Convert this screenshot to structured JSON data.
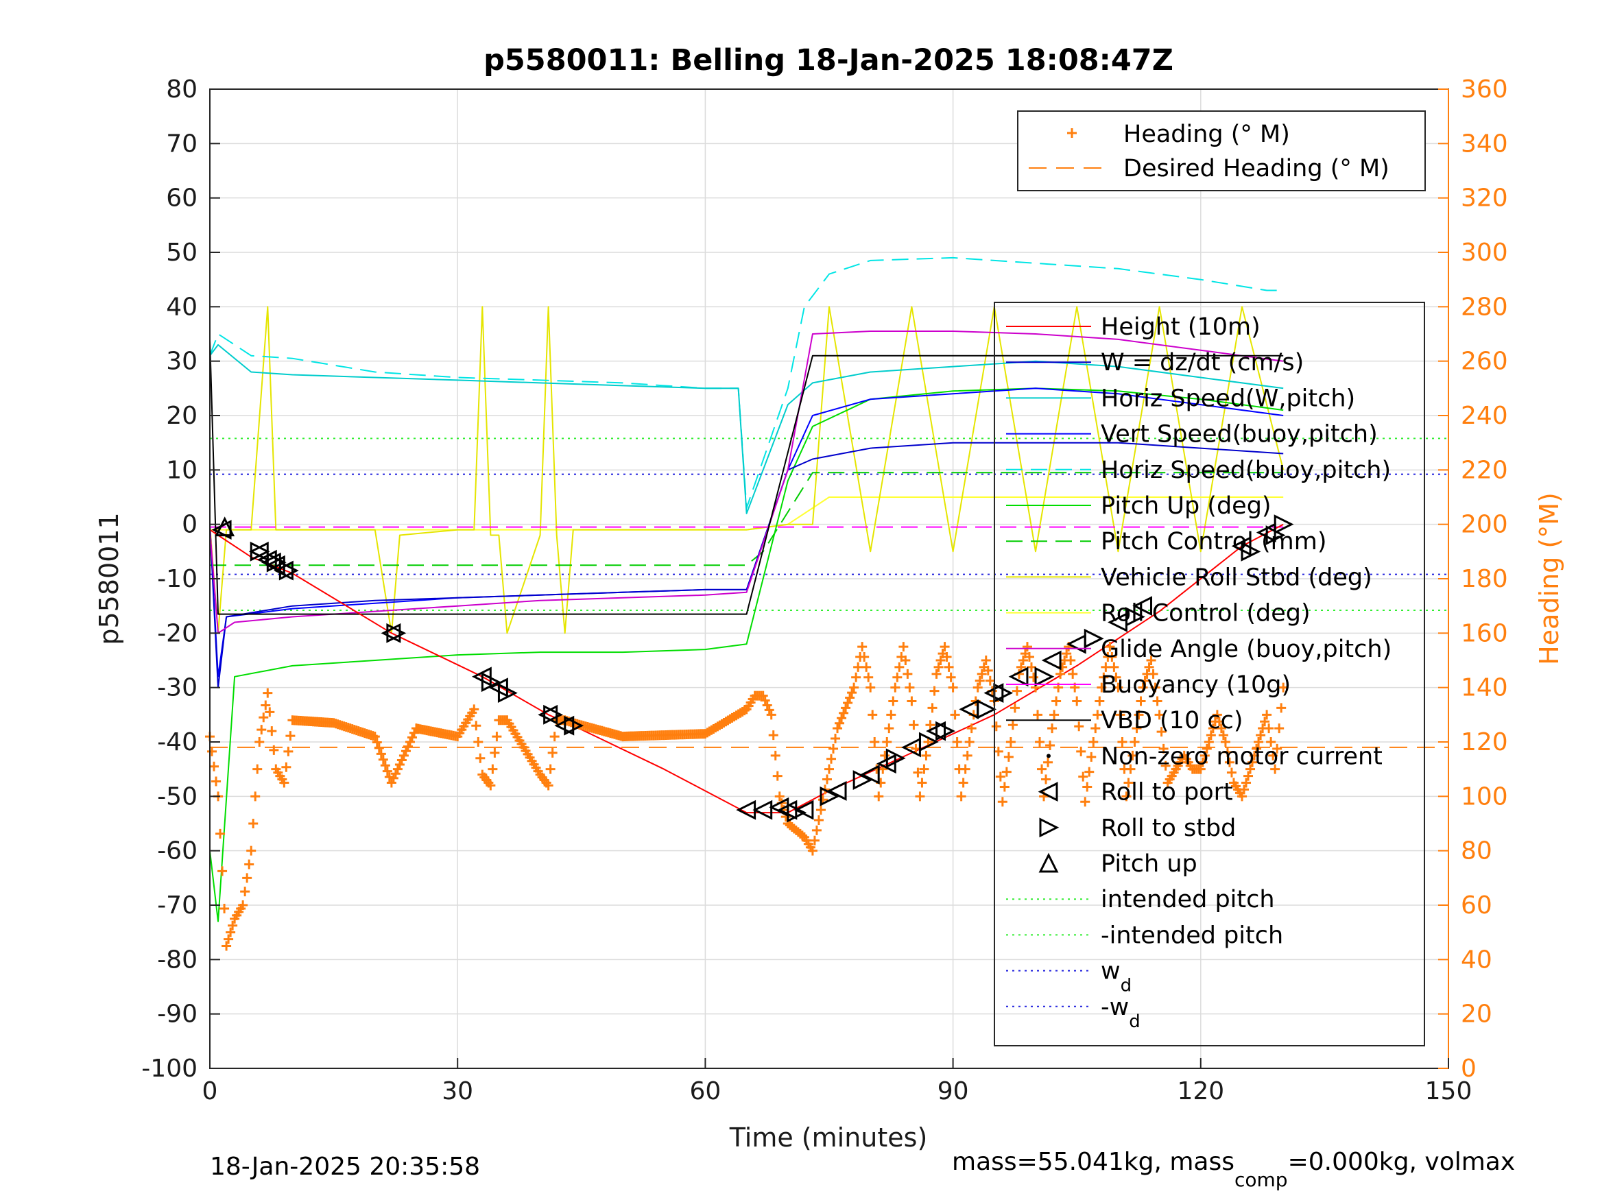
{
  "chart_data": {
    "type": "line",
    "title": "p5580011: Belling 18-Jan-2025 18:08:47Z",
    "xlabel": "Time (minutes)",
    "ylabel": "p5580011",
    "ylabel_right": "Heading (°M)",
    "xlim": [
      0,
      150
    ],
    "ylim": [
      -100,
      80
    ],
    "ylim_right": [
      0,
      360
    ],
    "xticks": [
      "0",
      "30",
      "60",
      "90",
      "120",
      "150"
    ],
    "yticks": [
      "80",
      "70",
      "60",
      "50",
      "40",
      "30",
      "20",
      "10",
      "0",
      "-10",
      "-20",
      "-30",
      "-40",
      "-50",
      "-60",
      "-70",
      "-80",
      "-90",
      "-100"
    ],
    "yticks_right": [
      "360",
      "340",
      "320",
      "300",
      "280",
      "260",
      "240",
      "220",
      "200",
      "180",
      "160",
      "140",
      "120",
      "100",
      "80",
      "60",
      "40",
      "20",
      "0"
    ],
    "grid": true,
    "legend_heading": [
      "Heading (° M)",
      "Desired Heading (° M)"
    ],
    "legend_main": [
      "Height (10m)",
      "W = dz/dt (cm/s)",
      "Horiz Speed(W,pitch)",
      "Vert Speed(buoy,pitch)",
      "Horiz Speed(buoy,pitch)",
      "Pitch Up (deg)",
      "Pitch Control (mm)",
      "Vehicle Roll Stbd (deg)",
      "Roll Control (deg)",
      "Glide Angle (buoy,pitch)",
      "Buoyancy (10g)",
      "VBD (10 cc)",
      "Non-zero motor current",
      "Roll to port",
      "Roll to stbd",
      "Pitch up",
      "intended pitch",
      "-intended pitch",
      "w",
      "-w"
    ],
    "legend_sub": "d",
    "colors": {
      "heading": "#ff7f0e",
      "height": "#ff0000",
      "w": "#0000cc",
      "horiz_w": "#00cccc",
      "vert_buoy": "#0000ff",
      "horiz_buoy": "#00e5e5",
      "pitch": "#00dd00",
      "pitch_ctrl": "#00cc00",
      "roll": "#e5e500",
      "roll_ctrl": "#ffff33",
      "glide": "#cc00cc",
      "buoyancy": "#ff00ff",
      "vbd": "#000000"
    },
    "constants": {
      "intended_pitch": 15.8,
      "w_d": 9.2
    },
    "desired_heading": 118,
    "series": [
      {
        "name": "Height (10m)",
        "x": [
          0,
          1,
          5,
          10,
          22,
          33,
          41,
          44,
          55,
          65,
          70,
          75,
          85,
          95,
          105,
          115,
          125,
          130
        ],
        "y": [
          -1,
          -2,
          -6,
          -9,
          -20,
          -28,
          -35,
          -37,
          -45,
          -53,
          -53,
          -49,
          -42,
          -35,
          -26,
          -16,
          -4,
          0
        ]
      },
      {
        "name": "W = dz/dt (cm/s)",
        "x": [
          0,
          1,
          2,
          10,
          20,
          30,
          40,
          50,
          60,
          65,
          70,
          73,
          80,
          90,
          100,
          110,
          120,
          130
        ],
        "y": [
          0,
          -30,
          -17,
          -15,
          -14,
          -13.5,
          -13,
          -12.5,
          -12,
          -12,
          10,
          12,
          14,
          15,
          15,
          15,
          14,
          13
        ]
      },
      {
        "name": "Vert Speed(buoy,pitch)",
        "x": [
          0,
          1,
          2,
          10,
          20,
          30,
          40,
          50,
          60,
          65,
          70,
          73,
          80,
          90,
          100,
          110,
          120,
          130
        ],
        "y": [
          0,
          -28,
          -17,
          -15.5,
          -14.5,
          -13.5,
          -13,
          -12.5,
          -12,
          -12,
          10,
          20,
          23,
          24,
          25,
          24,
          22,
          20
        ]
      },
      {
        "name": "Horiz Speed(W,pitch)",
        "x": [
          0,
          1,
          5,
          10,
          20,
          30,
          40,
          50,
          60,
          64,
          65,
          70,
          73,
          80,
          90,
          100,
          110,
          120,
          130
        ],
        "y": [
          31,
          33,
          28,
          27.5,
          27,
          26.5,
          26,
          25.5,
          25,
          25,
          2,
          22,
          26,
          28,
          29,
          30,
          29,
          27,
          25
        ]
      },
      {
        "name": "Horiz Speed(buoy,pitch)",
        "x": [
          0,
          1,
          5,
          10,
          20,
          30,
          40,
          50,
          60,
          64,
          65,
          70,
          72,
          75,
          80,
          90,
          100,
          110,
          120,
          128,
          130
        ],
        "y": [
          31,
          35,
          31,
          30.5,
          28,
          27,
          26.5,
          26,
          25,
          25,
          3,
          25,
          40,
          46,
          48.5,
          49,
          48,
          47,
          45,
          43,
          43
        ]
      },
      {
        "name": "Pitch Up (deg)",
        "x": [
          0,
          1,
          3,
          10,
          20,
          30,
          40,
          50,
          60,
          65,
          70,
          73,
          80,
          90,
          100,
          110,
          120,
          130
        ],
        "y": [
          -60,
          -73,
          -28,
          -26,
          -25,
          -24,
          -23.5,
          -23.5,
          -23,
          -22,
          8,
          18,
          23,
          24.5,
          25,
          24.5,
          23,
          21
        ]
      },
      {
        "name": "Pitch Control (mm)",
        "x": [
          0,
          2,
          65,
          67,
          73,
          130
        ],
        "y": [
          -7.5,
          -7.5,
          -7.5,
          -5,
          9.5,
          9.5
        ]
      },
      {
        "name": "Vehicle Roll Stbd (deg)",
        "x": [
          0,
          1,
          2,
          5,
          7,
          8,
          9,
          10,
          20,
          22,
          23,
          30,
          32,
          33,
          34,
          35,
          36,
          40,
          41,
          42,
          43,
          44,
          50,
          60,
          65,
          70,
          73,
          75,
          80,
          85,
          90,
          95,
          100,
          105,
          110,
          115,
          120,
          125,
          130
        ],
        "y": [
          0,
          -20,
          -1,
          -1,
          40,
          -1,
          -1,
          -1,
          -1,
          -20,
          -2,
          -1,
          -1,
          40,
          -2,
          -2,
          -20,
          -2,
          40,
          -2,
          -20,
          -1,
          -1,
          -1,
          -1,
          0,
          0,
          40,
          -5,
          40,
          -5,
          40,
          -5,
          40,
          -5,
          40,
          -5,
          40,
          10
        ]
      },
      {
        "name": "Roll Control (deg)",
        "x": [
          0,
          5,
          10,
          20,
          30,
          40,
          50,
          60,
          65,
          70,
          75,
          80,
          90,
          100,
          110,
          120,
          130
        ],
        "y": [
          -1,
          -1,
          -1,
          -1,
          -1,
          -1,
          -1,
          -1,
          -1,
          0,
          5,
          5,
          5,
          5,
          5,
          5,
          5
        ]
      },
      {
        "name": "Glide Angle (buoy,pitch)",
        "x": [
          0,
          1,
          3,
          10,
          20,
          30,
          40,
          50,
          60,
          65,
          70,
          73,
          80,
          90,
          100,
          110,
          120,
          130
        ],
        "y": [
          -1,
          -20,
          -18,
          -17,
          -16,
          -15,
          -14,
          -13.5,
          -13,
          -12.5,
          10,
          35,
          35.5,
          35.5,
          35,
          34,
          32,
          30
        ]
      },
      {
        "name": "Buoyancy (10g)",
        "x": [
          0,
          130
        ],
        "y": [
          -0.5,
          -0.5
        ]
      },
      {
        "name": "VBD (10 cc)",
        "x": [
          0,
          1,
          2,
          65,
          73,
          130
        ],
        "y": [
          34,
          -16.5,
          -16.5,
          -16.5,
          31,
          31
        ]
      },
      {
        "name": "Roll to port",
        "x": [
          1.5,
          6,
          7,
          7.5,
          8,
          9,
          22,
          33,
          35,
          41,
          43,
          65,
          67,
          69,
          70,
          72,
          76,
          80,
          82,
          85,
          88,
          92,
          95,
          98,
          102,
          105,
          110,
          113,
          125,
          128
        ],
        "y": [
          -1,
          -5,
          -6.5,
          -7,
          -7.5,
          -8.5,
          -20,
          -28,
          -30,
          -35,
          -37,
          -52.5,
          -52.5,
          -52,
          -52.5,
          -52.5,
          -49,
          -46,
          -44,
          -41,
          -38,
          -34,
          -31,
          -28,
          -25,
          -22,
          -18,
          -15,
          -4,
          -1.5
        ]
      },
      {
        "name": "Roll to stbd",
        "x": [
          6,
          8,
          9.5,
          22.5,
          34,
          36,
          41.5,
          44,
          71,
          75,
          79,
          83,
          87,
          89,
          94,
          96,
          101,
          107,
          112,
          126,
          129,
          130
        ],
        "y": [
          -5,
          -7,
          -8.5,
          -20,
          -29,
          -31,
          -35,
          -37,
          -53,
          -50,
          -47,
          -43,
          -40,
          -38,
          -34,
          -31,
          -28,
          -21,
          -17,
          -5,
          -2,
          0
        ]
      },
      {
        "name": "Pitch up",
        "x": [
          1.8
        ],
        "y": [
          -0.5
        ]
      },
      {
        "name": "Heading (° M)",
        "x": [
          0,
          1,
          2,
          3,
          4,
          5,
          6,
          7,
          8,
          9,
          10,
          15,
          20,
          22,
          25,
          30,
          32,
          33,
          34,
          35,
          36,
          40,
          41,
          42,
          43,
          44,
          50,
          60,
          65,
          66,
          67,
          68,
          69,
          70,
          72,
          73,
          74,
          75,
          76,
          78,
          79,
          80,
          81,
          82,
          83,
          84,
          85,
          86,
          87,
          88,
          89,
          90,
          91,
          92,
          93,
          94,
          95,
          96,
          97,
          98,
          99,
          100,
          101,
          102,
          103,
          104,
          105,
          106,
          107,
          108,
          109,
          110,
          111,
          112,
          113,
          114,
          115,
          116,
          117,
          118,
          119,
          120,
          121,
          122,
          123,
          124,
          125,
          126,
          127,
          128,
          129,
          130
        ],
        "y": [
          122,
          100,
          45,
          55,
          60,
          80,
          120,
          138,
          110,
          105,
          128,
          127,
          122,
          105,
          125,
          122,
          132,
          108,
          104,
          128,
          128,
          108,
          104,
          128,
          128,
          127,
          122,
          123,
          132,
          137,
          137,
          130,
          100,
          90,
          85,
          80,
          95,
          110,
          125,
          140,
          155,
          140,
          100,
          120,
          140,
          155,
          135,
          100,
          120,
          145,
          155,
          140,
          100,
          120,
          140,
          150,
          135,
          98,
          120,
          145,
          155,
          140,
          100,
          125,
          145,
          155,
          135,
          98,
          120,
          140,
          155,
          140,
          100,
          120,
          140,
          150,
          130,
          105,
          110,
          115,
          110,
          110,
          120,
          130,
          120,
          105,
          100,
          110,
          120,
          130,
          110,
          140
        ]
      }
    ]
  },
  "footer": {
    "timestamp": "18-Jan-2025 20:35:58",
    "mass_text_1": "mass=55.041kg, mass",
    "mass_sub": "comp",
    "mass_text_2": "=0.000kg, volmax"
  }
}
